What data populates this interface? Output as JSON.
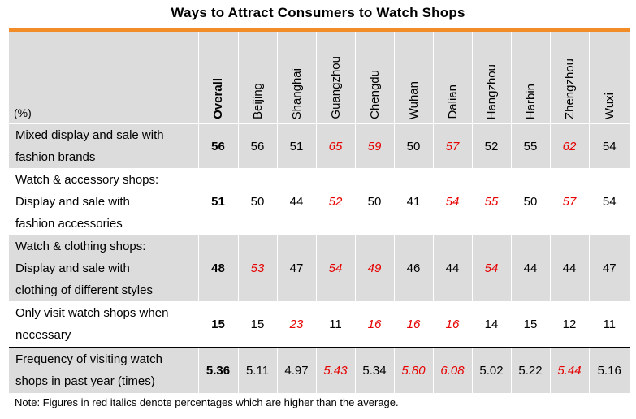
{
  "title": "Ways to Attract Consumers to Watch Shops",
  "unit_label": "(%)",
  "columns": [
    "Overall",
    "Beijing",
    "Shanghai",
    "Guangzhou",
    "Chengdu",
    "Wuhan",
    "Dalian",
    "Hangzhou",
    "Harbin",
    "Zhengzhou",
    "Wuxi"
  ],
  "rows": [
    {
      "label_lines": [
        "Mixed display and sale with",
        "fashion brands"
      ],
      "values": [
        "56",
        "56",
        "51",
        "65",
        "59",
        "50",
        "57",
        "52",
        "55",
        "62",
        "54"
      ],
      "highlight": [
        false,
        false,
        false,
        true,
        true,
        false,
        true,
        false,
        false,
        true,
        false
      ]
    },
    {
      "label_lines": [
        "Watch & accessory shops:",
        "Display and sale with",
        "fashion accessories"
      ],
      "values": [
        "51",
        "50",
        "44",
        "52",
        "50",
        "41",
        "54",
        "55",
        "50",
        "57",
        "54"
      ],
      "highlight": [
        false,
        false,
        false,
        true,
        false,
        false,
        true,
        true,
        false,
        true,
        false
      ]
    },
    {
      "label_lines": [
        "Watch & clothing shops:",
        "Display and sale with",
        "clothing of different styles"
      ],
      "values": [
        "48",
        "53",
        "47",
        "54",
        "49",
        "46",
        "44",
        "54",
        "44",
        "44",
        "47"
      ],
      "highlight": [
        false,
        true,
        false,
        true,
        true,
        false,
        false,
        true,
        false,
        false,
        false
      ]
    },
    {
      "label_lines": [
        "Only visit watch shops when",
        "necessary"
      ],
      "values": [
        "15",
        "15",
        "23",
        "11",
        "16",
        "16",
        "16",
        "14",
        "15",
        "12",
        "11"
      ],
      "highlight": [
        false,
        false,
        true,
        false,
        true,
        true,
        true,
        false,
        false,
        false,
        false
      ]
    },
    {
      "label_lines": [
        "Frequency of visiting watch",
        "shops in past year (times)"
      ],
      "values": [
        "5.36",
        "5.11",
        "4.97",
        "5.43",
        "5.34",
        "5.80",
        "6.08",
        "5.02",
        "5.22",
        "5.44",
        "5.16"
      ],
      "highlight": [
        false,
        false,
        false,
        true,
        false,
        true,
        true,
        false,
        false,
        true,
        false
      ]
    }
  ],
  "note": "Note: Figures in red italics denote percentages which are higher than the average.",
  "colors": {
    "accent_bar": "#f28c28",
    "highlight_text": "#e60000",
    "shade": "#dcdcdc"
  }
}
